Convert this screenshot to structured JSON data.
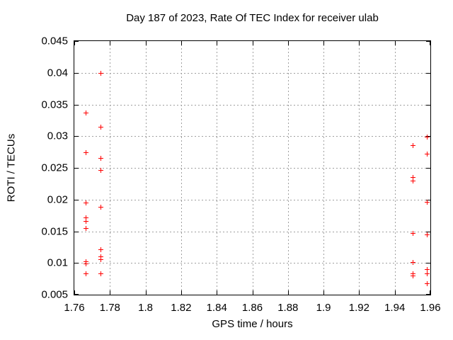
{
  "chart_data": {
    "type": "scatter",
    "title": "Day 187 of 2023, Rate Of TEC Index for receiver ulab",
    "xlabel": "GPS time / hours",
    "ylabel": "ROTI / TECUs",
    "xlim": [
      1.76,
      1.96
    ],
    "ylim": [
      0.005,
      0.045
    ],
    "grid": true,
    "legend": "none",
    "marker": "plus",
    "marker_color": "#ff0000",
    "grid_color": "#a0a0a0",
    "x_ticks": [
      {
        "v": 1.76,
        "label": "1.76"
      },
      {
        "v": 1.78,
        "label": "1.78"
      },
      {
        "v": 1.8,
        "label": "1.8"
      },
      {
        "v": 1.82,
        "label": "1.82"
      },
      {
        "v": 1.84,
        "label": "1.84"
      },
      {
        "v": 1.86,
        "label": "1.86"
      },
      {
        "v": 1.88,
        "label": "1.88"
      },
      {
        "v": 1.9,
        "label": "1.9"
      },
      {
        "v": 1.92,
        "label": "1.92"
      },
      {
        "v": 1.94,
        "label": "1.94"
      },
      {
        "v": 1.96,
        "label": "1.96"
      }
    ],
    "y_ticks": [
      {
        "v": 0.005,
        "label": "0.005"
      },
      {
        "v": 0.01,
        "label": "0.01"
      },
      {
        "v": 0.015,
        "label": "0.015"
      },
      {
        "v": 0.02,
        "label": "0.02"
      },
      {
        "v": 0.025,
        "label": "0.025"
      },
      {
        "v": 0.03,
        "label": "0.03"
      },
      {
        "v": 0.035,
        "label": "0.035"
      },
      {
        "v": 0.04,
        "label": "0.04"
      },
      {
        "v": 0.045,
        "label": "0.045"
      }
    ],
    "series": [
      {
        "name": "ROTI",
        "points": [
          [
            1.7662,
            0.0337
          ],
          [
            1.7662,
            0.0275
          ],
          [
            1.7662,
            0.0195
          ],
          [
            1.7662,
            0.0172
          ],
          [
            1.7662,
            0.0166
          ],
          [
            1.7662,
            0.0155
          ],
          [
            1.7662,
            0.0103
          ],
          [
            1.7662,
            0.0099
          ],
          [
            1.7662,
            0.0083
          ],
          [
            1.7749,
            0.04
          ],
          [
            1.7749,
            0.0315
          ],
          [
            1.7749,
            0.0266
          ],
          [
            1.7749,
            0.0247
          ],
          [
            1.7749,
            0.0188
          ],
          [
            1.7749,
            0.0121
          ],
          [
            1.7749,
            0.011
          ],
          [
            1.7749,
            0.0106
          ],
          [
            1.7749,
            0.0083
          ],
          [
            1.95,
            0.0286
          ],
          [
            1.95,
            0.0235
          ],
          [
            1.95,
            0.023
          ],
          [
            1.95,
            0.0147
          ],
          [
            1.95,
            0.0101
          ],
          [
            1.95,
            0.0084
          ],
          [
            1.95,
            0.008
          ],
          [
            1.9581,
            0.0299
          ],
          [
            1.9581,
            0.0272
          ],
          [
            1.9581,
            0.0196
          ],
          [
            1.9581,
            0.0145
          ],
          [
            1.9581,
            0.009
          ],
          [
            1.9581,
            0.0084
          ],
          [
            1.9581,
            0.0068
          ]
        ]
      }
    ]
  }
}
